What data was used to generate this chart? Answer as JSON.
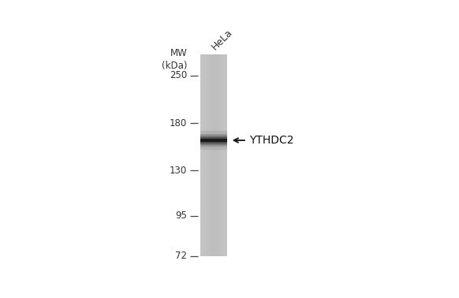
{
  "background_color": "#ffffff",
  "gel_color": "#c0c0c0",
  "band_mw": 160,
  "band_color": "#1a1a1a",
  "mw_markers": [
    250,
    180,
    130,
    95,
    72
  ],
  "mw_label_line1": "MW",
  "mw_label_line2": "(kDa)",
  "sample_label": "HeLa",
  "band_annotation": "YTHDC2",
  "log_mw_min": 72,
  "log_mw_max": 290,
  "tick_font_size": 8.5,
  "label_font_size": 8.5,
  "annotation_font_size": 10,
  "hela_font_size": 9
}
